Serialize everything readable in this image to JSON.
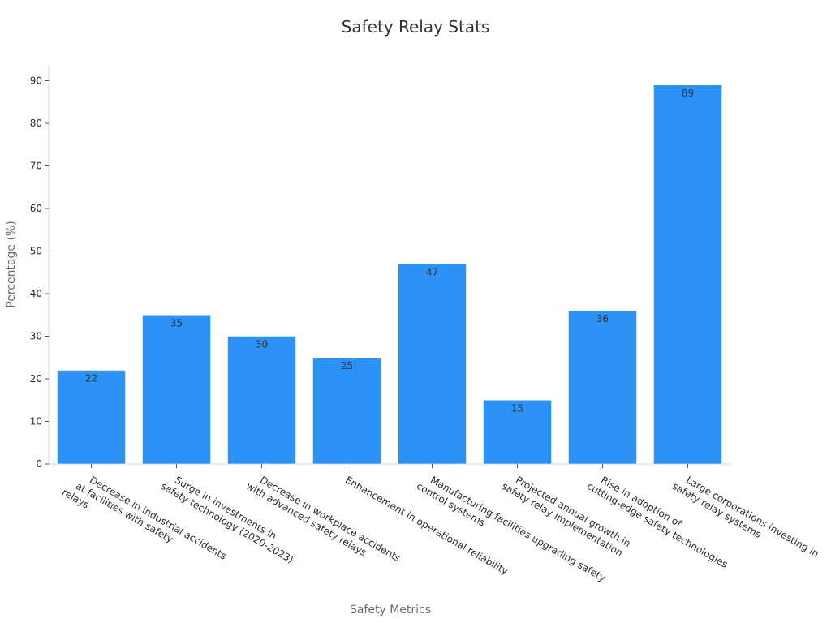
{
  "chart_data": {
    "type": "bar",
    "title": "Safety Relay Stats",
    "xlabel": "Safety Metrics",
    "ylabel": "Percentage (%)",
    "ylim": [
      0,
      94
    ],
    "yticks": [
      0,
      10,
      20,
      30,
      40,
      50,
      60,
      70,
      80,
      90
    ],
    "grid": false,
    "bar_color": "#2d92f6",
    "categories": [
      [
        "Decrease in industrial accidents",
        "at facilities with safety",
        "relays"
      ],
      [
        "Surge in investments in",
        "safety technology (2020-2023)"
      ],
      [
        "Decrease in workplace accidents",
        "with advanced safety relays"
      ],
      [
        "Enhancement in operational reliability"
      ],
      [
        "Manufacturing facilities upgrading safety",
        "control systems"
      ],
      [
        "Projected annual growth in",
        "safety relay implementation"
      ],
      [
        "Rise in adoption of",
        "cutting-edge safety technologies"
      ],
      [
        "Large corporations investing in",
        "safety relay systems"
      ]
    ],
    "values": [
      22,
      35,
      30,
      25,
      47,
      15,
      36,
      89
    ]
  }
}
